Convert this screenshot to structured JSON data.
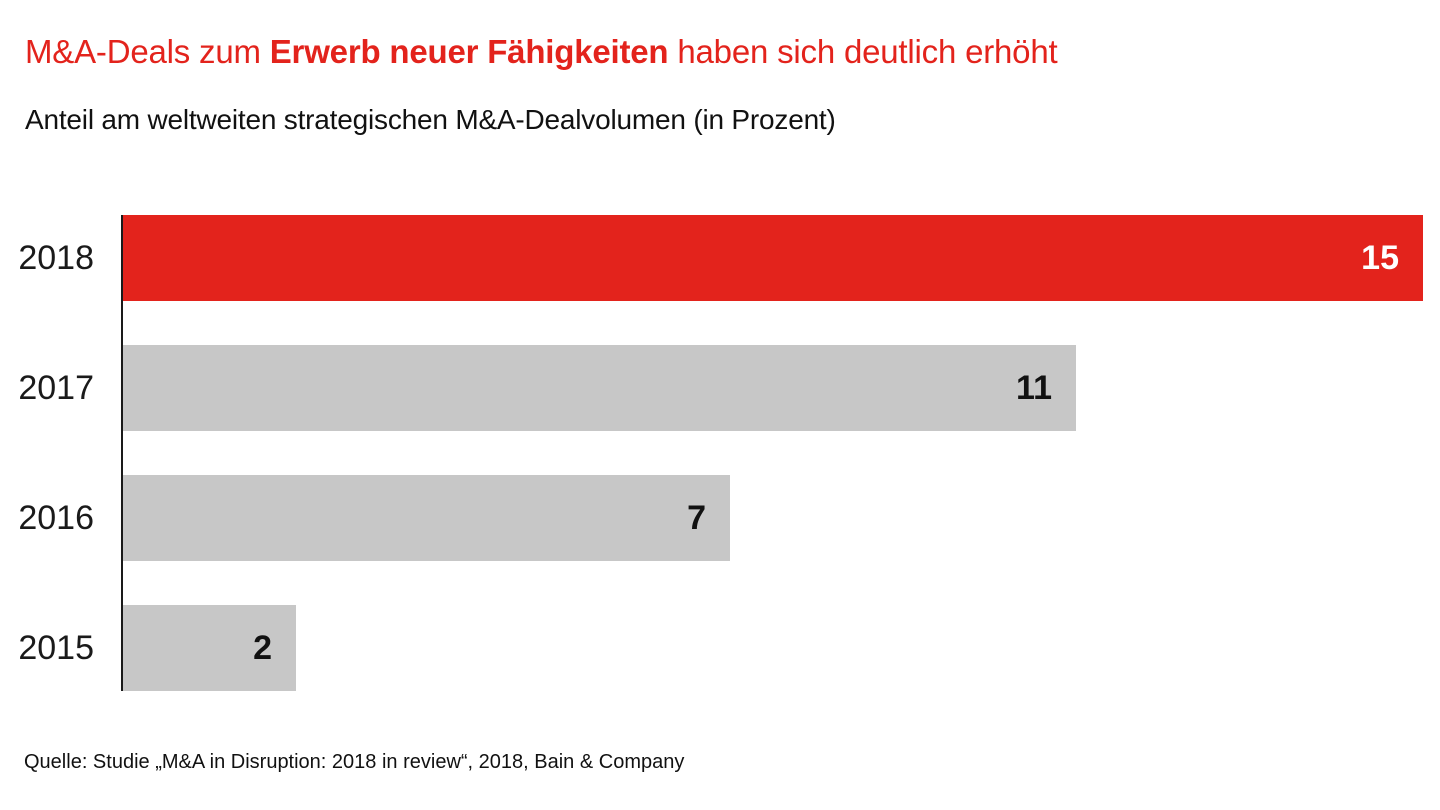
{
  "header": {
    "title": {
      "prefix": "M&A-Deals zum ",
      "emphasis": "Erwerb neuer Fähigkeiten",
      "suffix": " haben sich deutlich erhöht",
      "color": "#e3231c"
    },
    "subtitle": "Anteil am weltweiten strategischen M&A-Dealvolumen (in Prozent)"
  },
  "chart_data": {
    "type": "bar",
    "orientation": "horizontal",
    "title": "M&A-Deals zum Erwerb neuer Fähigkeiten haben sich deutlich erhöht",
    "subtitle": "Anteil am weltweiten strategischen M&A-Dealvolumen (in Prozent)",
    "categories": [
      "2018",
      "2017",
      "2016",
      "2015"
    ],
    "values": [
      15,
      11,
      7,
      2
    ],
    "series": [
      {
        "label": "2018",
        "value": 15,
        "highlight": true
      },
      {
        "label": "2017",
        "value": 11,
        "highlight": false
      },
      {
        "label": "2016",
        "value": 7,
        "highlight": false
      },
      {
        "label": "2015",
        "value": 2,
        "highlight": false
      }
    ],
    "xlim": [
      0,
      15
    ],
    "unit": "Prozent",
    "grid": false,
    "legend": false,
    "value_labels": "inside-end",
    "colors": {
      "highlight_bar": "#e3231c",
      "default_bar": "#c7c7c7",
      "highlight_value_text": "#ffffff",
      "default_value_text": "#111111",
      "axis": "#1a1a1a"
    }
  },
  "footer": {
    "source": "Quelle: Studie „M&A in Disruption: 2018 in review“, 2018, Bain & Company"
  }
}
